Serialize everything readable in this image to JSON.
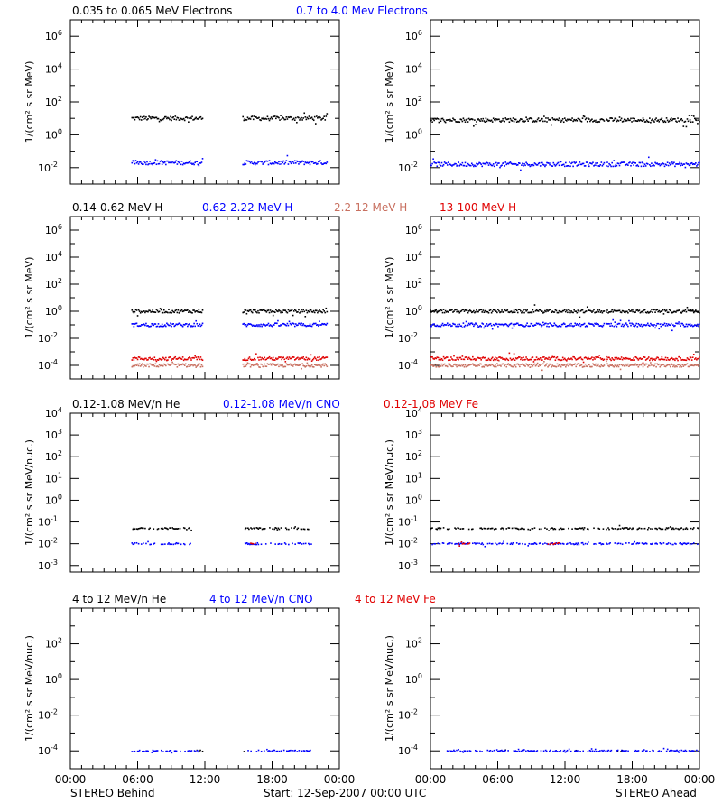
{
  "colors": {
    "black": "#000000",
    "blue": "#0000ff",
    "sienna": "#c87060",
    "red": "#e00000"
  },
  "footer": {
    "left": "STEREO Behind",
    "center": "Start: 12-Sep-2007 00:00 UTC",
    "right": "STEREO Ahead"
  },
  "x_ticks": [
    "00:00",
    "06:00",
    "12:00",
    "18:00",
    "00:00"
  ],
  "row_titles": [
    [
      {
        "text": "0.035 to 0.065 MeV Electrons",
        "color": "black"
      },
      {
        "text": "0.7 to 4.0 Mev Electrons",
        "color": "blue"
      }
    ],
    [
      {
        "text": "0.14-0.62 MeV H",
        "color": "black"
      },
      {
        "text": "0.62-2.22 MeV H",
        "color": "blue"
      },
      {
        "text": "2.2-12 MeV H",
        "color": "sienna"
      },
      {
        "text": "13-100 MeV H",
        "color": "red"
      }
    ],
    [
      {
        "text": "0.12-1.08 MeV/n He",
        "color": "black"
      },
      {
        "text": "0.12-1.08 MeV/n CNO",
        "color": "blue"
      },
      {
        "text": "0.12-1.08 MeV Fe",
        "color": "red"
      }
    ],
    [
      {
        "text": "4 to 12 MeV/n He",
        "color": "black"
      },
      {
        "text": "4 to 12 MeV/n CNO",
        "color": "blue"
      },
      {
        "text": "4 to 12 MeV Fe",
        "color": "red"
      }
    ]
  ],
  "chart_data": [
    {
      "type": "scatter",
      "panel": "row1-left",
      "ylabel": "1/(cm² s sr MeV)",
      "yscale": "log",
      "ylim_exp": [
        -3,
        7
      ],
      "ytick_exp": [
        -2,
        0,
        2,
        4,
        6
      ],
      "xlim_hours": [
        0,
        24
      ],
      "series": [
        {
          "name": "0.035 to 0.065 MeV Electrons",
          "color": "black",
          "level_exp": 1.0,
          "segments": [
            [
              5.5,
              11.8
            ],
            [
              15.4,
              22.9
            ]
          ]
        },
        {
          "name": "0.7 to 4.0 Mev Electrons",
          "color": "blue",
          "level_exp": -1.7,
          "segments": [
            [
              5.5,
              11.8
            ],
            [
              15.4,
              22.9
            ]
          ]
        }
      ]
    },
    {
      "type": "scatter",
      "panel": "row1-right",
      "ylabel": "1/(cm² s sr MeV)",
      "yscale": "log",
      "ylim_exp": [
        -3,
        7
      ],
      "ytick_exp": [
        -2,
        0,
        2,
        4,
        6
      ],
      "xlim_hours": [
        0,
        24
      ],
      "series": [
        {
          "name": "0.035 to 0.065 MeV Electrons",
          "color": "black",
          "level_exp": 0.9,
          "segments": [
            [
              0,
              15.5
            ],
            [
              15.7,
              24
            ]
          ]
        },
        {
          "name": "0.7 to 4.0 Mev Electrons",
          "color": "blue",
          "level_exp": -1.8,
          "segments": [
            [
              0,
              15.5
            ],
            [
              15.7,
              24
            ]
          ]
        }
      ]
    },
    {
      "type": "scatter",
      "panel": "row2-left",
      "ylabel": "1/(cm² s sr MeV)",
      "yscale": "log",
      "ylim_exp": [
        -5,
        7
      ],
      "ytick_exp": [
        -4,
        -2,
        0,
        2,
        4,
        6
      ],
      "xlim_hours": [
        0,
        24
      ],
      "series": [
        {
          "name": "0.14-0.62 MeV H",
          "color": "black",
          "level_exp": 0.0,
          "segments": [
            [
              5.5,
              11.8
            ],
            [
              15.4,
              22.9
            ]
          ]
        },
        {
          "name": "0.62-2.22 MeV H",
          "color": "blue",
          "level_exp": -1.0,
          "segments": [
            [
              5.5,
              11.8
            ],
            [
              15.4,
              22.9
            ]
          ]
        },
        {
          "name": "2.2-12 MeV H",
          "color": "sienna",
          "level_exp": -4.0,
          "segments": [
            [
              5.5,
              11.8
            ],
            [
              15.4,
              22.9
            ]
          ]
        },
        {
          "name": "13-100 MeV H",
          "color": "red",
          "level_exp": -3.5,
          "segments": [
            [
              5.5,
              11.8
            ],
            [
              15.4,
              22.9
            ]
          ]
        }
      ]
    },
    {
      "type": "scatter",
      "panel": "row2-right",
      "ylabel": "1/(cm² s sr MeV)",
      "yscale": "log",
      "ylim_exp": [
        -5,
        7
      ],
      "ytick_exp": [
        -4,
        -2,
        0,
        2,
        4,
        6
      ],
      "xlim_hours": [
        0,
        24
      ],
      "series": [
        {
          "name": "0.14-0.62 MeV H",
          "color": "black",
          "level_exp": 0.0,
          "segments": [
            [
              0,
              15.5
            ],
            [
              15.7,
              24
            ]
          ]
        },
        {
          "name": "0.62-2.22 MeV H",
          "color": "blue",
          "level_exp": -1.0,
          "segments": [
            [
              0,
              15.5
            ],
            [
              15.7,
              24
            ]
          ]
        },
        {
          "name": "2.2-12 MeV H",
          "color": "sienna",
          "level_exp": -4.0,
          "segments": [
            [
              0,
              15.5
            ],
            [
              15.7,
              24
            ]
          ]
        },
        {
          "name": "13-100 MeV H",
          "color": "red",
          "level_exp": -3.5,
          "segments": [
            [
              0,
              15.5
            ],
            [
              15.7,
              24
            ]
          ]
        }
      ]
    },
    {
      "type": "scatter",
      "panel": "row3-left",
      "ylabel": "1/(cm² s sr MeV/nuc.)",
      "yscale": "log",
      "ylim_exp": [
        -3.3,
        4
      ],
      "ytick_exp": [
        -3,
        -2,
        -1,
        0,
        1,
        2,
        3,
        4
      ],
      "xlim_hours": [
        0,
        24
      ],
      "series": [
        {
          "name": "0.12-1.08 MeV/n He",
          "color": "black",
          "level_exp": -1.3,
          "segments": [
            [
              5.5,
              10.8
            ],
            [
              15.6,
              21.5
            ]
          ]
        },
        {
          "name": "0.12-1.08 MeV/n CNO",
          "color": "blue",
          "level_exp": -2.0,
          "segments": [
            [
              5.5,
              10.8
            ],
            [
              15.6,
              21.5
            ]
          ]
        },
        {
          "name": "0.12-1.08 MeV Fe",
          "color": "red",
          "level_exp": -2.0,
          "segments": [
            [
              16.0,
              16.5
            ]
          ]
        }
      ]
    },
    {
      "type": "scatter",
      "panel": "row3-right",
      "ylabel": "1/(cm² s sr MeV/nuc.)",
      "yscale": "log",
      "ylim_exp": [
        -3.3,
        4
      ],
      "ytick_exp": [
        -3,
        -2,
        -1,
        0,
        1,
        2,
        3,
        4
      ],
      "xlim_hours": [
        0,
        24
      ],
      "series": [
        {
          "name": "0.12-1.08 MeV/n He",
          "color": "black",
          "level_exp": -1.3,
          "segments": [
            [
              0,
              15.5
            ],
            [
              15.7,
              24
            ]
          ]
        },
        {
          "name": "0.12-1.08 MeV/n CNO",
          "color": "blue",
          "level_exp": -2.0,
          "segments": [
            [
              0,
              15.5
            ],
            [
              15.7,
              24
            ]
          ]
        },
        {
          "name": "0.12-1.08 MeV Fe",
          "color": "red",
          "level_exp": -2.0,
          "segments": [
            [
              2.5,
              3.5
            ],
            [
              10.5,
              11.5
            ]
          ]
        }
      ]
    },
    {
      "type": "scatter",
      "panel": "row4-left",
      "ylabel": "1/(cm² s sr MeV/nuc.)",
      "yscale": "log",
      "ylim_exp": [
        -5,
        4
      ],
      "ytick_exp": [
        -4,
        -2,
        0,
        2
      ],
      "xlim_hours": [
        0,
        24
      ],
      "series": [
        {
          "name": "4 to 12 MeV/n He",
          "color": "black",
          "level_exp": -4.0,
          "segments": [
            [
              11.3,
              11.8
            ],
            [
              15.5,
              15.6
            ]
          ]
        },
        {
          "name": "4 to 12 MeV/n CNO",
          "color": "blue",
          "level_exp": -4.0,
          "segments": [
            [
              5.5,
              11.5
            ],
            [
              15.7,
              21.5
            ]
          ]
        }
      ]
    },
    {
      "type": "scatter",
      "panel": "row4-right",
      "ylabel": "1/(cm² s sr MeV/nuc.)",
      "yscale": "log",
      "ylim_exp": [
        -5,
        4
      ],
      "ytick_exp": [
        -4,
        -2,
        0,
        2
      ],
      "xlim_hours": [
        0,
        24
      ],
      "series": [
        {
          "name": "4 to 12 MeV/n He",
          "color": "black",
          "level_exp": -4.0,
          "segments": [
            [
              6.7,
              6.8
            ],
            [
              12.9,
              13.0
            ],
            [
              16.5,
              16.7
            ],
            [
              17.0,
              17.1
            ]
          ]
        },
        {
          "name": "4 to 12 MeV/n CNO",
          "color": "blue",
          "level_exp": -4.0,
          "segments": [
            [
              1.5,
              24
            ]
          ]
        }
      ]
    }
  ]
}
